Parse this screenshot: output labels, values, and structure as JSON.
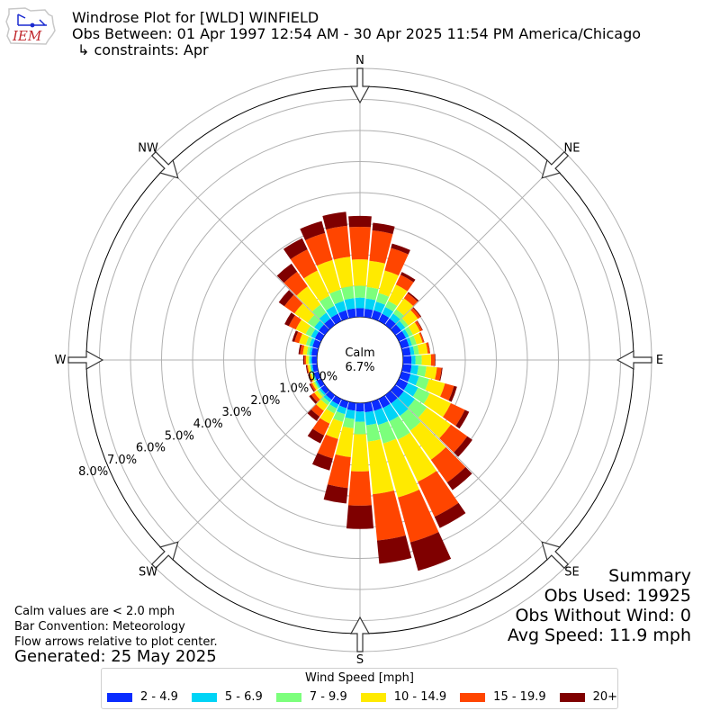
{
  "header": {
    "logo_text": "IEM",
    "title": "Windrose Plot for [WLD] WINFIELD",
    "obs_between": "Obs Between: 01 Apr 1997 12:54 AM - 30 Apr 2025 11:54 PM America/Chicago",
    "constraints": "↳ constraints: Apr"
  },
  "notes": {
    "calm_note": "Calm values are < 2.0 mph",
    "bar_convention": "Bar Convention: Meteorology",
    "flow_arrows": "Flow arrows relative to plot center.",
    "generated": "Generated: 25 May 2025"
  },
  "summary": {
    "title": "Summary",
    "obs_used": "Obs Used: 19925",
    "obs_without_wind": "Obs Without Wind: 0",
    "avg_speed": "Avg Speed: 11.9 mph"
  },
  "chart_data": {
    "type": "windrose",
    "center_label": "Calm",
    "calm_value": "6.7%",
    "directions_labels": [
      "N",
      "NE",
      "E",
      "SE",
      "S",
      "SW",
      "W",
      "NW"
    ],
    "radial_ticks": [
      "0.0%",
      "1.0%",
      "2.0%",
      "3.0%",
      "4.0%",
      "5.0%",
      "6.0%",
      "7.0%",
      "8.0%"
    ],
    "legend_title": "Wind Speed [mph]",
    "bins": [
      "2 - 4.9",
      "5 - 6.9",
      "7 - 9.9",
      "10 - 14.9",
      "15 - 19.9",
      "20+"
    ],
    "colors": [
      "#0a2cff",
      "#00d4f6",
      "#7cff7c",
      "#ffea00",
      "#ff4500",
      "#7f0000"
    ],
    "angles_deg": [
      0,
      10,
      20,
      30,
      40,
      50,
      60,
      70,
      80,
      90,
      100,
      110,
      120,
      130,
      140,
      150,
      160,
      170,
      180,
      190,
      200,
      210,
      220,
      230,
      240,
      250,
      260,
      270,
      280,
      290,
      300,
      310,
      320,
      330,
      340,
      350
    ],
    "cumulative_pct": [
      [
        0.28,
        0.62,
        1.0,
        1.85,
        2.9,
        3.25
      ],
      [
        0.27,
        0.6,
        0.97,
        1.82,
        2.8,
        3.05
      ],
      [
        0.27,
        0.56,
        0.85,
        1.6,
        2.35,
        2.5
      ],
      [
        0.26,
        0.5,
        0.72,
        1.3,
        1.65,
        1.75
      ],
      [
        0.25,
        0.45,
        0.62,
        1.05,
        1.25,
        1.3
      ],
      [
        0.24,
        0.4,
        0.52,
        0.9,
        1.0,
        1.03
      ],
      [
        0.25,
        0.36,
        0.5,
        0.75,
        0.83,
        0.85
      ],
      [
        0.25,
        0.35,
        0.5,
        0.7,
        0.75,
        0.76
      ],
      [
        0.25,
        0.37,
        0.52,
        0.8,
        0.87,
        0.88
      ],
      [
        0.27,
        0.4,
        0.6,
        0.9,
        1.02,
        1.04
      ],
      [
        0.28,
        0.5,
        0.76,
        1.1,
        1.25,
        1.28
      ],
      [
        0.3,
        0.58,
        0.92,
        1.45,
        1.75,
        1.85
      ],
      [
        0.32,
        0.68,
        1.1,
        1.85,
        2.35,
        2.5
      ],
      [
        0.34,
        0.78,
        1.25,
        2.2,
        2.85,
        3.05
      ],
      [
        0.33,
        0.82,
        1.4,
        2.55,
        3.45,
        3.75
      ],
      [
        0.32,
        0.8,
        1.45,
        2.95,
        4.2,
        4.6
      ],
      [
        0.31,
        0.78,
        1.4,
        3.2,
        4.7,
        5.65
      ],
      [
        0.3,
        0.72,
        1.25,
        2.95,
        4.45,
        5.2
      ],
      [
        0.27,
        0.6,
        1.0,
        2.2,
        3.3,
        4.05
      ],
      [
        0.25,
        0.52,
        0.82,
        1.75,
        2.75,
        3.25
      ],
      [
        0.22,
        0.42,
        0.68,
        1.25,
        1.9,
        2.3
      ],
      [
        0.2,
        0.34,
        0.52,
        0.88,
        1.3,
        1.58
      ],
      [
        0.18,
        0.28,
        0.4,
        0.62,
        0.85,
        1.02
      ],
      [
        0.16,
        0.23,
        0.3,
        0.42,
        0.54,
        0.62
      ],
      [
        0.15,
        0.2,
        0.25,
        0.32,
        0.38,
        0.42
      ],
      [
        0.15,
        0.19,
        0.23,
        0.28,
        0.32,
        0.35
      ],
      [
        0.15,
        0.2,
        0.24,
        0.3,
        0.33,
        0.36
      ],
      [
        0.16,
        0.22,
        0.27,
        0.35,
        0.4,
        0.44
      ],
      [
        0.18,
        0.25,
        0.33,
        0.46,
        0.55,
        0.6
      ],
      [
        0.2,
        0.3,
        0.42,
        0.65,
        0.8,
        0.88
      ],
      [
        0.22,
        0.36,
        0.55,
        0.9,
        1.15,
        1.3
      ],
      [
        0.24,
        0.42,
        0.68,
        1.2,
        1.6,
        1.82
      ],
      [
        0.25,
        0.48,
        0.8,
        1.52,
        2.1,
        2.42
      ],
      [
        0.26,
        0.54,
        0.9,
        1.8,
        2.55,
        2.95
      ],
      [
        0.27,
        0.58,
        0.96,
        1.95,
        2.85,
        3.25
      ],
      [
        0.28,
        0.61,
        1.0,
        1.95,
        2.95,
        3.4
      ]
    ]
  }
}
